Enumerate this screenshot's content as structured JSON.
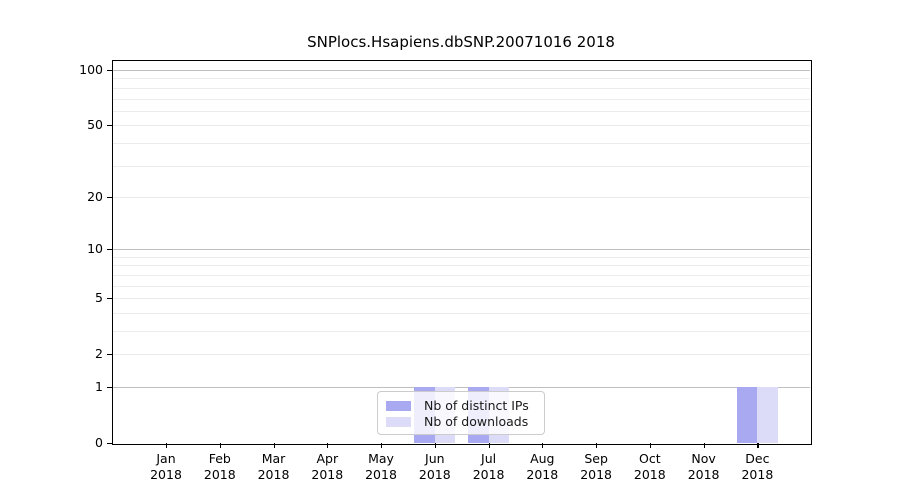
{
  "title": "SNPlocs.Hsapiens.dbSNP.20071016 2018",
  "colors": {
    "distinct_ips": "#a9a9f1",
    "downloads": "#dcdcf8",
    "grid_major": "#bfbfbf",
    "grid_minor": "#ececec",
    "axis": "#000000",
    "legend_border": "#cccccc"
  },
  "legend": {
    "items": [
      {
        "label": "Nb of distinct IPs",
        "color_key": "distinct_ips"
      },
      {
        "label": "Nb of downloads",
        "color_key": "downloads"
      }
    ]
  },
  "y_axis": {
    "scale": "log1p",
    "tick_values": [
      0,
      1,
      2,
      5,
      10,
      20,
      50,
      100
    ],
    "tick_labels": [
      "0",
      "1",
      "2",
      "5",
      "10",
      "20",
      "50",
      "100"
    ],
    "major_grid": [
      1,
      10,
      100
    ],
    "minor_grid": [
      2,
      3,
      4,
      5,
      6,
      7,
      8,
      9,
      20,
      30,
      40,
      50,
      60,
      70,
      80,
      90
    ]
  },
  "x_axis": {
    "categories": [
      {
        "month": "Jan",
        "year": "2018"
      },
      {
        "month": "Feb",
        "year": "2018"
      },
      {
        "month": "Mar",
        "year": "2018"
      },
      {
        "month": "Apr",
        "year": "2018"
      },
      {
        "month": "May",
        "year": "2018"
      },
      {
        "month": "Jun",
        "year": "2018"
      },
      {
        "month": "Jul",
        "year": "2018"
      },
      {
        "month": "Aug",
        "year": "2018"
      },
      {
        "month": "Sep",
        "year": "2018"
      },
      {
        "month": "Oct",
        "year": "2018"
      },
      {
        "month": "Nov",
        "year": "2018"
      },
      {
        "month": "Dec",
        "year": "2018"
      }
    ]
  },
  "chart_data": {
    "type": "bar",
    "title": "SNPlocs.Hsapiens.dbSNP.20071016 2018",
    "categories": [
      "Jan 2018",
      "Feb 2018",
      "Mar 2018",
      "Apr 2018",
      "May 2018",
      "Jun 2018",
      "Jul 2018",
      "Aug 2018",
      "Sep 2018",
      "Oct 2018",
      "Nov 2018",
      "Dec 2018"
    ],
    "series": [
      {
        "name": "Nb of distinct IPs",
        "color_key": "distinct_ips",
        "values": [
          0,
          0,
          0,
          0,
          0,
          1,
          1,
          0,
          0,
          0,
          0,
          1
        ]
      },
      {
        "name": "Nb of downloads",
        "color_key": "downloads",
        "values": [
          0,
          0,
          0,
          0,
          0,
          1,
          1,
          0,
          0,
          0,
          0,
          1
        ]
      }
    ],
    "xlabel": "",
    "ylabel": "",
    "ylim": [
      0,
      113
    ],
    "yscale": "log1p",
    "grid": "horizontal",
    "legend_position": "bottom-center"
  }
}
